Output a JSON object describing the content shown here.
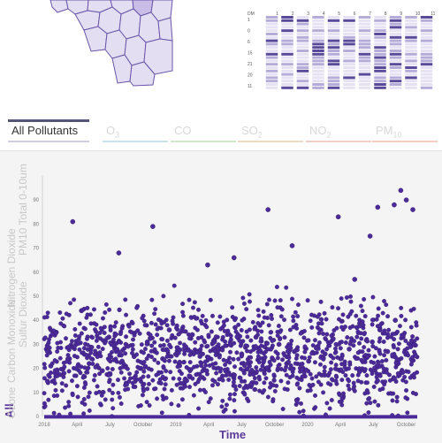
{
  "colors": {
    "accent": "#4c2a99",
    "map_fill": "#e4def3",
    "map_stroke": "#6a55a8",
    "grid_dark": "#5a4a9a",
    "tab_active": "#333333",
    "tab_inactive": "#d8d8d8"
  },
  "tabs": [
    {
      "key": "all",
      "label": "All Pollutants",
      "sub": "",
      "active": true,
      "bar": "#555577",
      "bar2": "#cfcfe2"
    },
    {
      "key": "o3",
      "label": "O",
      "sub": "3",
      "active": false,
      "bar": "#ffffff",
      "bar2": "#c9e3ea"
    },
    {
      "key": "co",
      "label": "CO",
      "sub": "",
      "active": false,
      "bar": "#ffffff",
      "bar2": "#cfe9c9"
    },
    {
      "key": "so2",
      "label": "SO",
      "sub": "2",
      "active": false,
      "bar": "#ffffff",
      "bar2": "#ecd8bc"
    },
    {
      "key": "no2",
      "label": "NO",
      "sub": "2",
      "active": false,
      "bar": "#ffffff",
      "bar2": "#f1cfc8"
    },
    {
      "key": "pm10",
      "label": "PM",
      "sub": "10",
      "active": false,
      "bar": "#ffffff",
      "bar2": "#f3cdbf"
    }
  ],
  "vertical_tabs": [
    {
      "label": "All",
      "active": true
    },
    {
      "label": "Ozone",
      "active": false
    },
    {
      "label": "Carbon Monoxide",
      "active": false
    },
    {
      "label": "Sulfur Dioxide",
      "active": false
    },
    {
      "label": "Nitrogen Dioxide",
      "active": false
    },
    {
      "label": "PM10 Total 0-10um",
      "active": false
    }
  ],
  "grid_panel": {
    "col_labels": [
      "DM",
      "1",
      "2",
      "3",
      "4",
      "5",
      "6",
      "7",
      "8",
      "9",
      "10",
      "11"
    ],
    "row_labels": [
      "1",
      "0",
      "6",
      "15",
      "21",
      "20",
      "11"
    ]
  },
  "chart_data": {
    "type": "scatter",
    "xlabel": "Time",
    "ylabel": "",
    "ylim": [
      0,
      100
    ],
    "yticks": [
      0,
      10,
      20,
      30,
      40,
      50,
      60,
      70,
      80,
      90
    ],
    "x_tick_labels": [
      "2018",
      "April",
      "July",
      "October",
      "2019",
      "April",
      "July",
      "October",
      "2020",
      "April",
      "July",
      "October"
    ],
    "x_range_months": [
      0,
      34
    ],
    "marker_color": "#4c2a99",
    "series": [
      {
        "x_months": [
          0.2,
          0.6,
          1.1,
          1.8,
          2.3,
          2.9,
          3.4,
          4.1,
          4.8,
          5.3,
          5.9,
          6.4,
          7.1,
          7.7,
          8.2,
          8.8,
          9.4,
          10.1,
          10.8,
          11.4,
          12.3,
          12.9,
          13.5,
          14.2,
          14.8,
          15.5,
          16.1,
          16.7,
          17.4,
          18.0,
          18.7,
          19.3,
          20.1,
          20.8,
          21.4,
          22.1,
          22.8,
          23.5,
          24.1,
          24.9,
          25.6,
          26.3,
          27.0,
          27.8,
          28.5,
          29.2,
          29.9,
          30.6,
          31.3,
          32.0,
          32.7,
          33.4,
          2.6,
          6.8,
          9.9,
          14.9,
          17.3,
          20.4,
          22.6,
          26.8,
          28.3,
          29.7,
          30.4,
          31.9,
          32.5,
          33.0,
          33.6
        ],
        "y": [
          28,
          21,
          35,
          18,
          24,
          30,
          44,
          22,
          26,
          19,
          33,
          29,
          23,
          38,
          25,
          20,
          31,
          27,
          24,
          36,
          22,
          29,
          34,
          25,
          19,
          31,
          28,
          23,
          37,
          26,
          21,
          33,
          29,
          24,
          30,
          22,
          27,
          35,
          23,
          29,
          26,
          32,
          24,
          28,
          37,
          25,
          31,
          36,
          27,
          40,
          33,
          29,
          81,
          68,
          79,
          63,
          66,
          86,
          71,
          83,
          57,
          75,
          87,
          88,
          94,
          90,
          86
        ]
      }
    ]
  }
}
